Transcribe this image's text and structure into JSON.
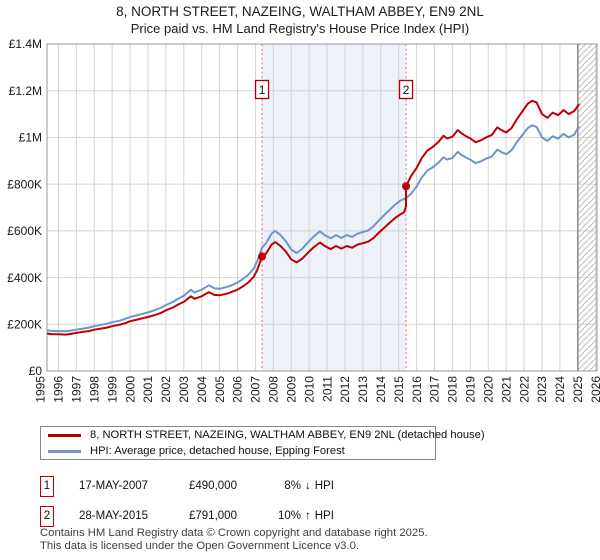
{
  "title": "8, NORTH STREET, NAZEING, WALTHAM ABBEY, EN9 2NL",
  "subtitle": "Price paid vs. HM Land Registry's House Price Index (HPI)",
  "chart_data": {
    "type": "line",
    "x_range": [
      1995,
      2026
    ],
    "y_range_k": [
      0,
      1400
    ],
    "grid": true,
    "legend_position": "bottom",
    "x_label_years": [
      "1995",
      "1996",
      "1997",
      "1998",
      "1999",
      "2000",
      "2001",
      "2002",
      "2003",
      "2004",
      "2005",
      "2006",
      "2007",
      "2008",
      "2009",
      "2010",
      "2011",
      "2012",
      "2013",
      "2014",
      "2015",
      "2016",
      "2017",
      "2018",
      "2019",
      "2020",
      "2021",
      "2022",
      "2023",
      "2024",
      "2025",
      "2026"
    ],
    "y_ticks": [
      {
        "value": 0,
        "label": "£0"
      },
      {
        "value": 200,
        "label": "£200K"
      },
      {
        "value": 400,
        "label": "£400K"
      },
      {
        "value": 600,
        "label": "£600K"
      },
      {
        "value": 800,
        "label": "£800K"
      },
      {
        "value": 1000,
        "label": "£1M"
      },
      {
        "value": 1200,
        "label": "£1.2M"
      },
      {
        "value": 1400,
        "label": "£1.4M"
      }
    ],
    "shaded_span_years": [
      2007.37,
      2015.41
    ],
    "future_hatch_start_year": 2025,
    "colors": {
      "grid": "#d4d4d4",
      "border": "#999999",
      "shade": "#edf1fa",
      "dotted_marker": "#f27f7f",
      "marker_box_border": "#aa0000",
      "hatch": "#bbbbbb",
      "sale_dot": "#c00000"
    },
    "series": [
      {
        "name": "price-paid",
        "legend": "8, NORTH STREET, NAZEING, WALTHAM ABBEY, EN9 2NL (detached house)",
        "color": "#c00000",
        "points": [
          [
            1995.0,
            165
          ],
          [
            1995.3,
            161
          ],
          [
            1995.6,
            158
          ],
          [
            1996.0,
            157
          ],
          [
            1996.4,
            156
          ],
          [
            1996.7,
            159
          ],
          [
            1997.0,
            163
          ],
          [
            1997.4,
            168
          ],
          [
            1997.7,
            171
          ],
          [
            1998.0,
            177
          ],
          [
            1998.4,
            182
          ],
          [
            1998.7,
            186
          ],
          [
            1999.0,
            192
          ],
          [
            1999.4,
            198
          ],
          [
            1999.7,
            204
          ],
          [
            2000.0,
            213
          ],
          [
            2000.4,
            220
          ],
          [
            2000.7,
            226
          ],
          [
            2001.0,
            231
          ],
          [
            2001.4,
            240
          ],
          [
            2001.7,
            248
          ],
          [
            2002.0,
            260
          ],
          [
            2002.4,
            272
          ],
          [
            2002.7,
            285
          ],
          [
            2003.0,
            296
          ],
          [
            2003.4,
            320
          ],
          [
            2003.6,
            309
          ],
          [
            2004.0,
            320
          ],
          [
            2004.4,
            338
          ],
          [
            2004.7,
            326
          ],
          [
            2005.0,
            324
          ],
          [
            2005.5,
            333
          ],
          [
            2006.0,
            348
          ],
          [
            2006.3,
            362
          ],
          [
            2006.6,
            379
          ],
          [
            2006.9,
            403
          ],
          [
            2007.1,
            432
          ],
          [
            2007.37,
            490
          ],
          [
            2007.6,
            504
          ],
          [
            2007.9,
            541
          ],
          [
            2008.1,
            552
          ],
          [
            2008.4,
            535
          ],
          [
            2008.7,
            511
          ],
          [
            2009.0,
            478
          ],
          [
            2009.3,
            465
          ],
          [
            2009.6,
            480
          ],
          [
            2009.9,
            504
          ],
          [
            2010.2,
            526
          ],
          [
            2010.6,
            550
          ],
          [
            2010.9,
            534
          ],
          [
            2011.2,
            522
          ],
          [
            2011.5,
            535
          ],
          [
            2011.8,
            524
          ],
          [
            2012.1,
            535
          ],
          [
            2012.4,
            528
          ],
          [
            2012.7,
            541
          ],
          [
            2013.0,
            547
          ],
          [
            2013.3,
            554
          ],
          [
            2013.6,
            570
          ],
          [
            2013.9,
            593
          ],
          [
            2014.2,
            614
          ],
          [
            2014.5,
            635
          ],
          [
            2014.8,
            655
          ],
          [
            2015.1,
            671
          ],
          [
            2015.3,
            680
          ],
          [
            2015.41,
            705
          ],
          [
            2015.41,
            791
          ],
          [
            2015.7,
            836
          ],
          [
            2016.0,
            869
          ],
          [
            2016.3,
            913
          ],
          [
            2016.6,
            944
          ],
          [
            2016.9,
            959
          ],
          [
            2017.2,
            979
          ],
          [
            2017.5,
            1007
          ],
          [
            2017.7,
            996
          ],
          [
            2018.0,
            1003
          ],
          [
            2018.3,
            1032
          ],
          [
            2018.5,
            1018
          ],
          [
            2018.8,
            1003
          ],
          [
            2019.0,
            996
          ],
          [
            2019.3,
            979
          ],
          [
            2019.6,
            988
          ],
          [
            2019.9,
            1001
          ],
          [
            2020.2,
            1010
          ],
          [
            2020.5,
            1043
          ],
          [
            2020.8,
            1029
          ],
          [
            2021.0,
            1021
          ],
          [
            2021.3,
            1040
          ],
          [
            2021.6,
            1078
          ],
          [
            2021.9,
            1111
          ],
          [
            2022.2,
            1144
          ],
          [
            2022.45,
            1157
          ],
          [
            2022.7,
            1150
          ],
          [
            2023.0,
            1100
          ],
          [
            2023.3,
            1084
          ],
          [
            2023.6,
            1106
          ],
          [
            2023.9,
            1095
          ],
          [
            2024.2,
            1117
          ],
          [
            2024.5,
            1100
          ],
          [
            2024.8,
            1113
          ],
          [
            2025.05,
            1140
          ]
        ]
      },
      {
        "name": "hpi",
        "legend": "HPI: Average price, detached house, Epping Forest",
        "color": "#6f95c8",
        "points": [
          [
            1995.0,
            178
          ],
          [
            1995.3,
            174
          ],
          [
            1995.6,
            172
          ],
          [
            1996.0,
            171
          ],
          [
            1996.4,
            170
          ],
          [
            1996.7,
            173
          ],
          [
            1997.0,
            177
          ],
          [
            1997.4,
            182
          ],
          [
            1997.7,
            186
          ],
          [
            1998.0,
            192
          ],
          [
            1998.4,
            198
          ],
          [
            1998.7,
            202
          ],
          [
            1999.0,
            209
          ],
          [
            1999.4,
            215
          ],
          [
            1999.7,
            222
          ],
          [
            2000.0,
            231
          ],
          [
            2000.4,
            239
          ],
          [
            2000.7,
            245
          ],
          [
            2001.0,
            251
          ],
          [
            2001.4,
            261
          ],
          [
            2001.7,
            270
          ],
          [
            2002.0,
            282
          ],
          [
            2002.4,
            296
          ],
          [
            2002.7,
            310
          ],
          [
            2003.0,
            322
          ],
          [
            2003.4,
            348
          ],
          [
            2003.6,
            336
          ],
          [
            2004.0,
            348
          ],
          [
            2004.4,
            367
          ],
          [
            2004.7,
            354
          ],
          [
            2005.0,
            352
          ],
          [
            2005.5,
            362
          ],
          [
            2006.0,
            378
          ],
          [
            2006.3,
            394
          ],
          [
            2006.6,
            412
          ],
          [
            2006.9,
            438
          ],
          [
            2007.1,
            470
          ],
          [
            2007.37,
            528
          ],
          [
            2007.6,
            548
          ],
          [
            2007.9,
            588
          ],
          [
            2008.1,
            600
          ],
          [
            2008.4,
            582
          ],
          [
            2008.7,
            555
          ],
          [
            2009.0,
            520
          ],
          [
            2009.3,
            505
          ],
          [
            2009.6,
            522
          ],
          [
            2009.9,
            548
          ],
          [
            2010.2,
            572
          ],
          [
            2010.6,
            598
          ],
          [
            2010.9,
            580
          ],
          [
            2011.2,
            568
          ],
          [
            2011.5,
            582
          ],
          [
            2011.8,
            570
          ],
          [
            2012.1,
            582
          ],
          [
            2012.4,
            574
          ],
          [
            2012.7,
            588
          ],
          [
            2013.0,
            595
          ],
          [
            2013.3,
            602
          ],
          [
            2013.6,
            620
          ],
          [
            2013.9,
            645
          ],
          [
            2014.2,
            668
          ],
          [
            2014.5,
            690
          ],
          [
            2014.8,
            712
          ],
          [
            2015.1,
            730
          ],
          [
            2015.41,
            740
          ],
          [
            2015.7,
            760
          ],
          [
            2016.0,
            790
          ],
          [
            2016.3,
            830
          ],
          [
            2016.6,
            858
          ],
          [
            2016.9,
            872
          ],
          [
            2017.2,
            890
          ],
          [
            2017.5,
            915
          ],
          [
            2017.7,
            905
          ],
          [
            2018.0,
            912
          ],
          [
            2018.3,
            938
          ],
          [
            2018.5,
            925
          ],
          [
            2018.8,
            912
          ],
          [
            2019.0,
            905
          ],
          [
            2019.3,
            890
          ],
          [
            2019.6,
            898
          ],
          [
            2019.9,
            910
          ],
          [
            2020.2,
            918
          ],
          [
            2020.5,
            948
          ],
          [
            2020.8,
            935
          ],
          [
            2021.0,
            928
          ],
          [
            2021.3,
            945
          ],
          [
            2021.6,
            980
          ],
          [
            2021.9,
            1010
          ],
          [
            2022.2,
            1040
          ],
          [
            2022.45,
            1052
          ],
          [
            2022.7,
            1045
          ],
          [
            2023.0,
            1000
          ],
          [
            2023.3,
            985
          ],
          [
            2023.6,
            1005
          ],
          [
            2023.9,
            995
          ],
          [
            2024.2,
            1015
          ],
          [
            2024.5,
            1000
          ],
          [
            2024.8,
            1012
          ],
          [
            2025.05,
            1045
          ]
        ]
      }
    ],
    "sales": [
      {
        "label": "1",
        "year": 2007.37,
        "value_k": 490
      },
      {
        "label": "2",
        "year": 2015.41,
        "value_k": 791
      }
    ]
  },
  "transactions": [
    {
      "num": "1",
      "date": "17-MAY-2007",
      "price": "£490,000",
      "pct": "8%",
      "arrow": "↓",
      "hpi": "HPI"
    },
    {
      "num": "2",
      "date": "28-MAY-2015",
      "price": "£791,000",
      "pct": "10%",
      "arrow": "↑",
      "hpi": "HPI"
    }
  ],
  "footer": {
    "line1": "Contains HM Land Registry data © Crown copyright and database right 2025.",
    "line2": "This data is licensed under the Open Government Licence v3.0."
  }
}
